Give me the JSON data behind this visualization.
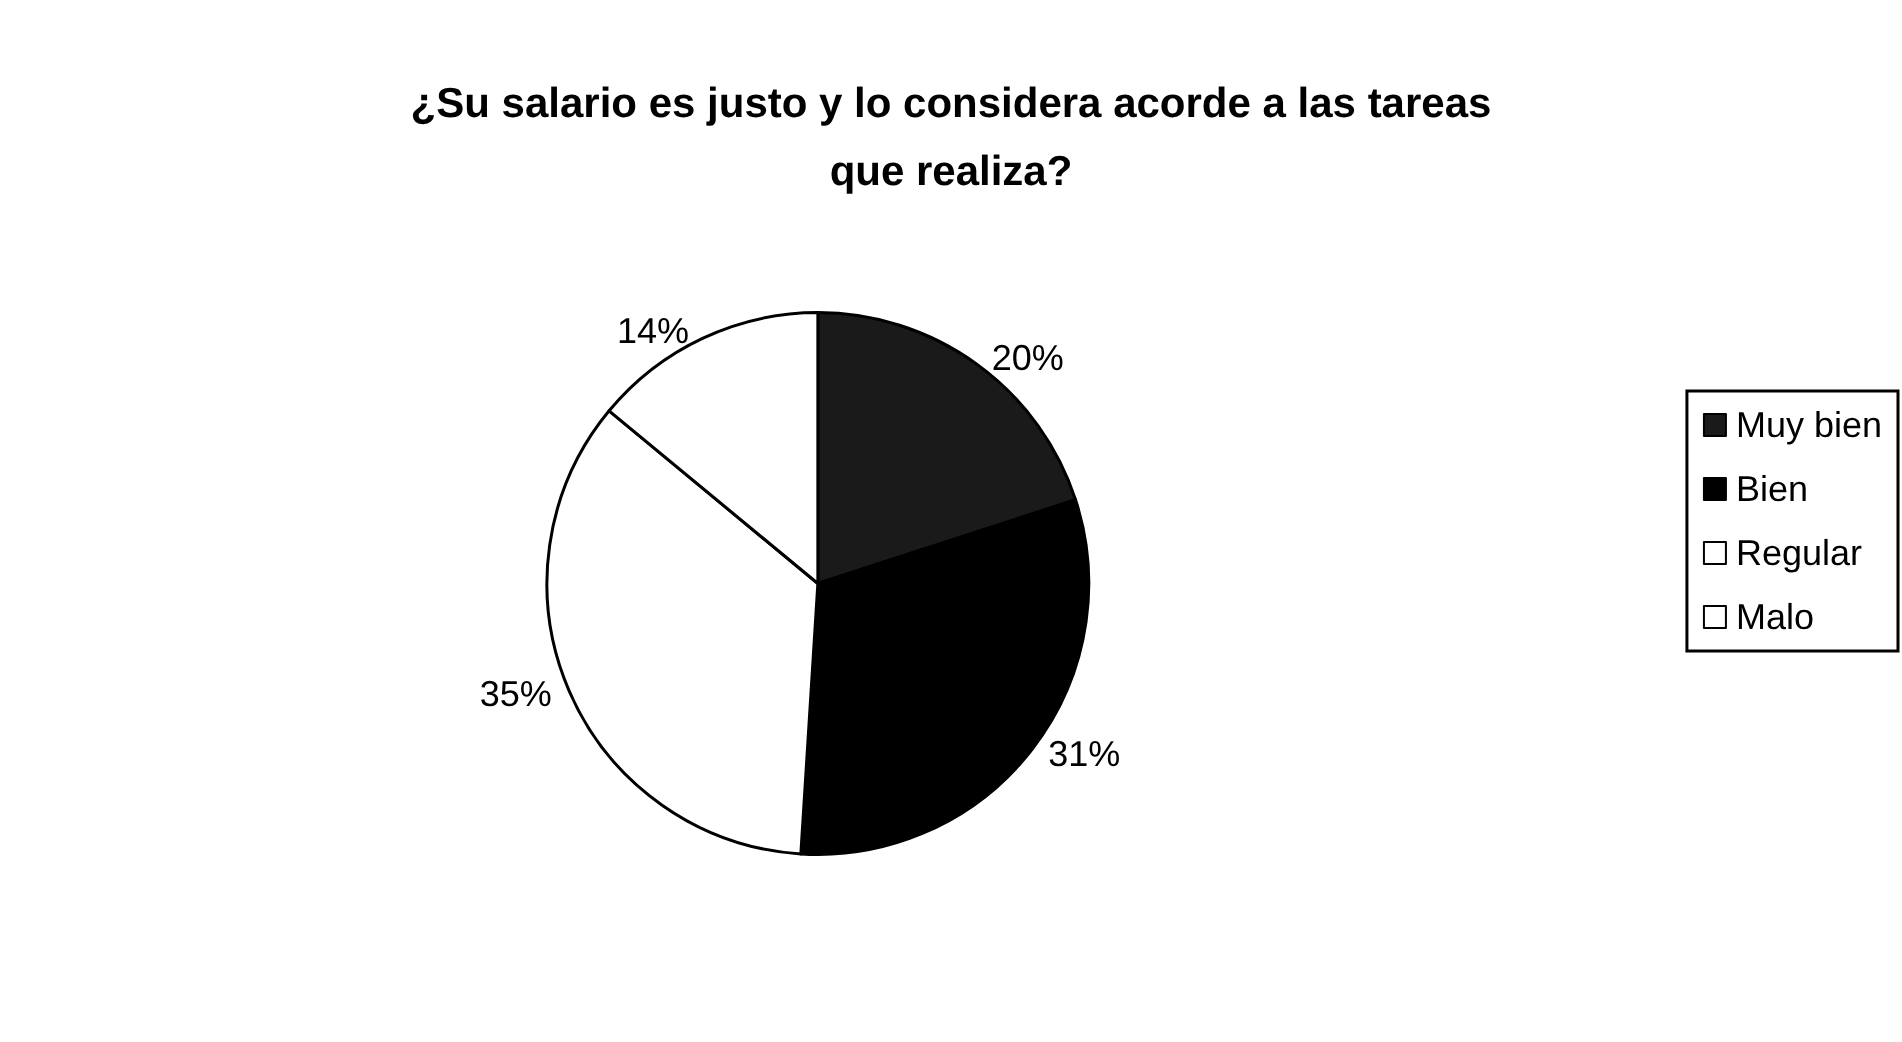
{
  "chart_data": {
    "type": "pie",
    "title": "¿Su salario es justo y lo considera acorde a las tareas que realiza?",
    "categories": [
      "Muy bien",
      "Bien",
      "Regular",
      "Malo"
    ],
    "values": [
      20,
      31,
      35,
      14
    ],
    "value_labels": [
      "20%",
      "31%",
      "35%",
      "14%"
    ],
    "colors": [
      "#1a1a1a",
      "#000000",
      "#ffffff",
      "#ffffff"
    ],
    "legend": "right"
  }
}
